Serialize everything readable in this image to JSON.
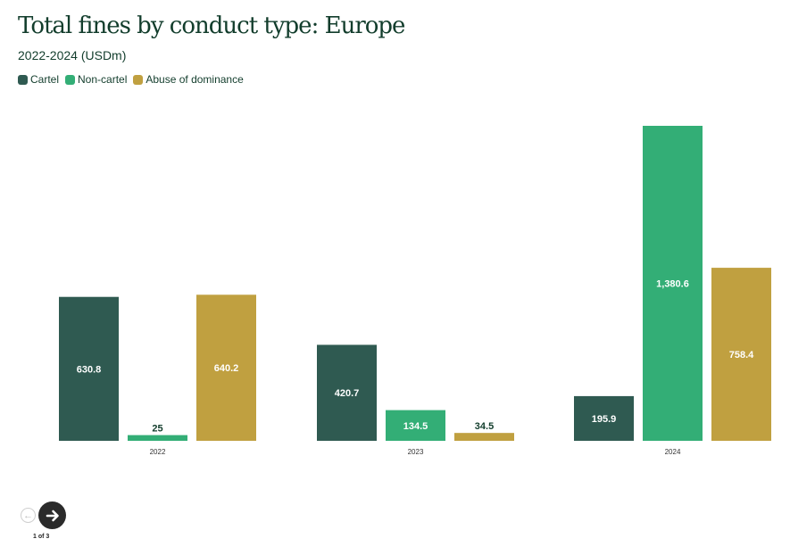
{
  "title": "Total fines by conduct type: Europe",
  "subtitle": "2022-2024 (USDm)",
  "legend": [
    {
      "label": "Cartel",
      "color": "#2f5a51"
    },
    {
      "label": "Non-cartel",
      "color": "#33ae76"
    },
    {
      "label": "Abuse of dominance",
      "color": "#c0a040"
    }
  ],
  "pagination": {
    "label": "1 of 3"
  },
  "chart_data": {
    "type": "bar",
    "categories": [
      "2022",
      "2023",
      "2024"
    ],
    "series": [
      {
        "name": "Cartel",
        "color": "#2f5a51",
        "values": [
          630.8,
          420.7,
          195.9
        ],
        "labels": [
          "630.8",
          "420.7",
          "195.9"
        ]
      },
      {
        "name": "Non-cartel",
        "color": "#33ae76",
        "values": [
          25,
          134.5,
          1380.6
        ],
        "labels": [
          "25",
          "134.5",
          "1,380.6"
        ]
      },
      {
        "name": "Abuse of dominance",
        "color": "#c0a040",
        "values": [
          640.2,
          34.5,
          758.4
        ],
        "labels": [
          "640.2",
          "34.5",
          "758.4"
        ]
      }
    ],
    "title": "Total fines by conduct type: Europe",
    "xlabel": "",
    "ylabel": "",
    "ylim": [
      0,
      1380.6
    ],
    "grid": false,
    "legend_position": "top-left"
  }
}
